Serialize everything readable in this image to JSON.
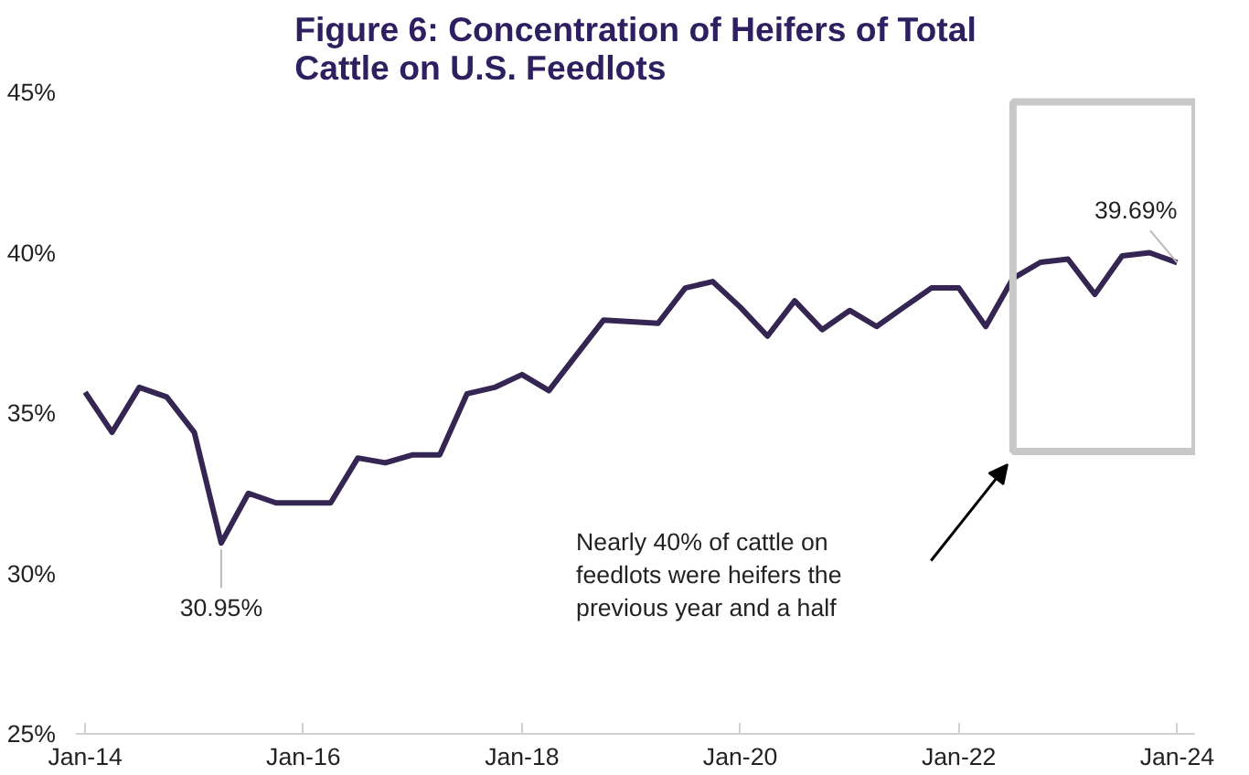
{
  "chart_data": {
    "type": "line",
    "title": "Figure 6: Concentration of Heifers of Total Cattle on U.S. Feedlots",
    "x": [
      "2014-01",
      "2014-04",
      "2014-07",
      "2014-10",
      "2015-01",
      "2015-04",
      "2015-07",
      "2015-10",
      "2016-01",
      "2016-04",
      "2016-07",
      "2016-10",
      "2017-01",
      "2017-04",
      "2017-07",
      "2017-10",
      "2018-01",
      "2018-04",
      "2018-07",
      "2018-10",
      "2019-01",
      "2019-04",
      "2019-07",
      "2019-10",
      "2020-01",
      "2020-04",
      "2020-07",
      "2020-10",
      "2021-01",
      "2021-04",
      "2021-07",
      "2021-10",
      "2022-01",
      "2022-04",
      "2022-07",
      "2022-10",
      "2023-01",
      "2023-04",
      "2023-07",
      "2023-10",
      "2024-01"
    ],
    "series": [
      {
        "color": "#352552",
        "values": [
          35.65,
          34.4,
          35.8,
          35.5,
          34.4,
          30.95,
          32.5,
          32.2,
          32.2,
          32.2,
          33.6,
          33.45,
          33.7,
          33.7,
          35.6,
          35.8,
          36.2,
          35.7,
          36.8,
          37.9,
          37.85,
          37.8,
          38.9,
          39.1,
          38.3,
          37.4,
          38.5,
          37.6,
          38.2,
          37.7,
          38.3,
          38.9,
          38.9,
          37.7,
          39.2,
          39.7,
          39.8,
          38.7,
          39.9,
          40.0,
          39.69
        ]
      }
    ],
    "xlim": [
      "2013-12",
      "2024-03"
    ],
    "xticks": [
      {
        "value": "2014-01",
        "label": "Jan-14"
      },
      {
        "value": "2016-01",
        "label": "Jan-16"
      },
      {
        "value": "2018-01",
        "label": "Jan-18"
      },
      {
        "value": "2020-01",
        "label": "Jan-20"
      },
      {
        "value": "2022-01",
        "label": "Jan-22"
      },
      {
        "value": "2024-01",
        "label": "Jan-24"
      }
    ],
    "ylim": [
      25,
      45
    ],
    "yticks": [
      {
        "value": 25,
        "label": "25%"
      },
      {
        "value": 30,
        "label": "30%"
      },
      {
        "value": 35,
        "label": "35%"
      },
      {
        "value": 40,
        "label": "40%"
      },
      {
        "value": 45,
        "label": "45%"
      }
    ],
    "annotations": [
      {
        "text": "30.95%",
        "x": "2015-04",
        "y": 30.95
      },
      {
        "text": "39.69%",
        "x": "2024-01",
        "y": 39.69
      },
      "Nearly 40% of cattle on feedlots were heifers the previous year and a half"
    ],
    "grid": false,
    "marker": "none",
    "line_style": "solid"
  }
}
